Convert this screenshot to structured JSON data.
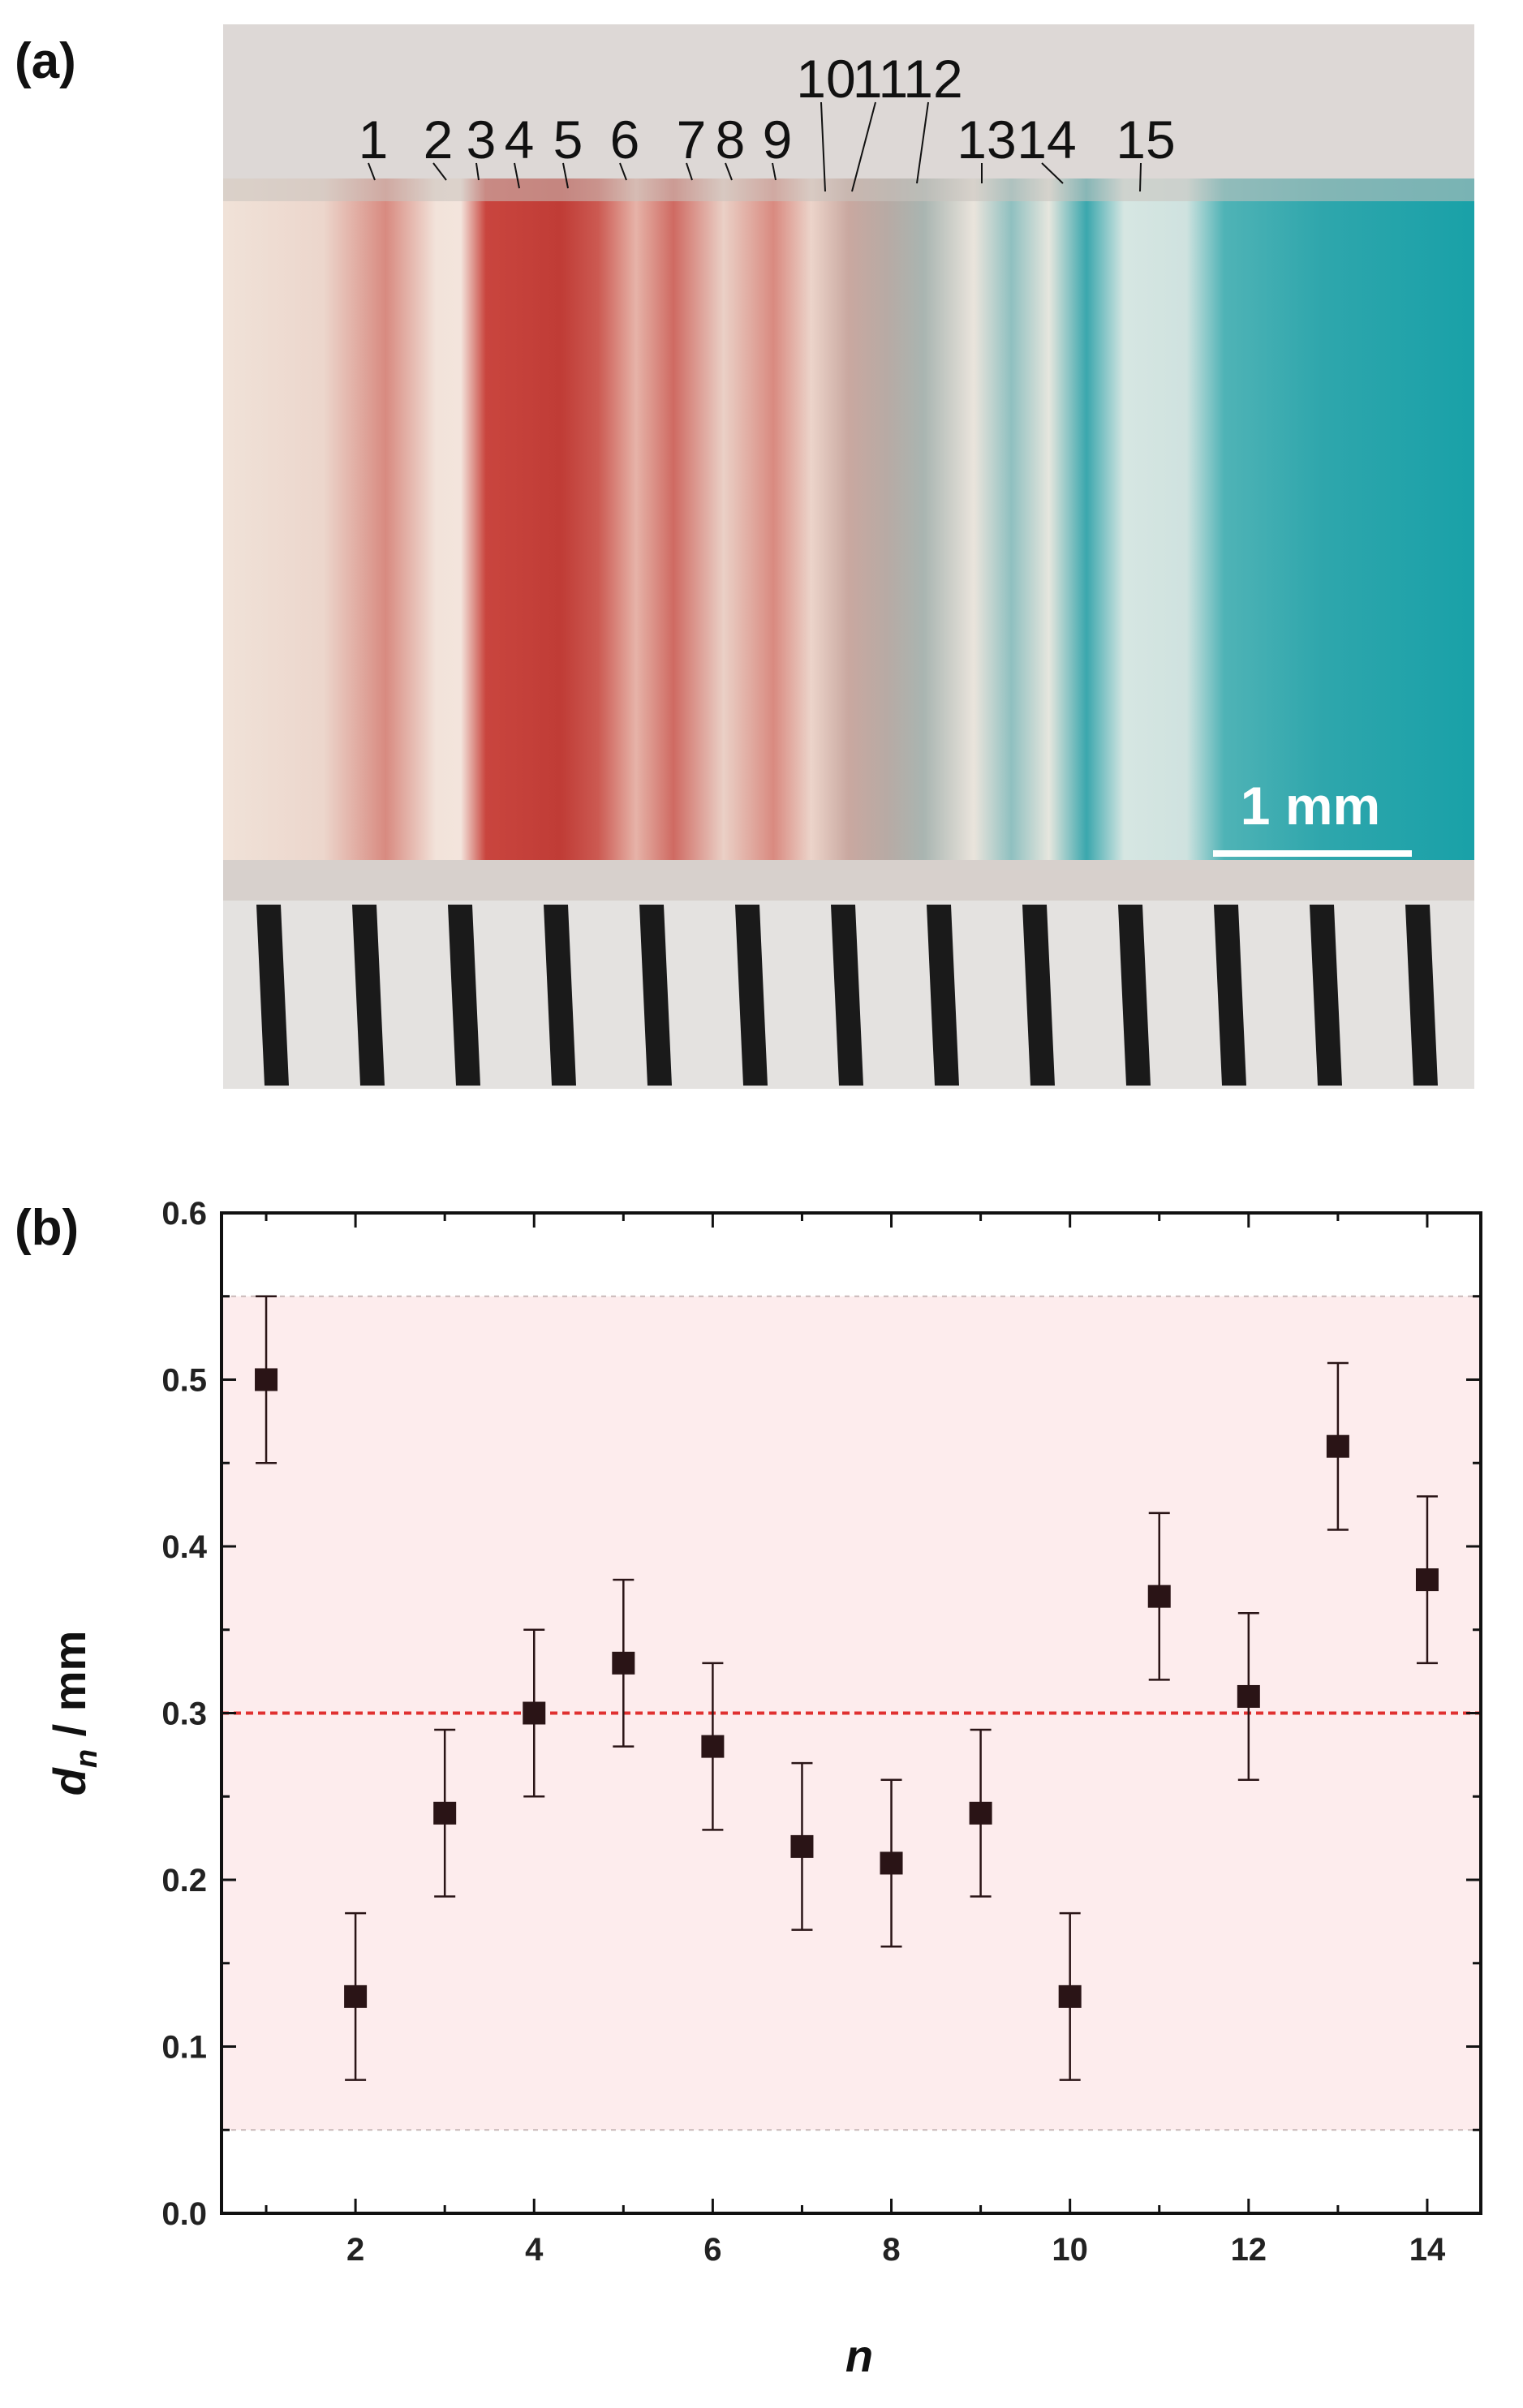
{
  "panel_a": {
    "label": "(a)",
    "band_labels": [
      "1",
      "2",
      "3",
      "4",
      "5",
      "6",
      "7",
      "8",
      "9",
      "10",
      "11",
      "12",
      "13",
      "14",
      "15"
    ],
    "scale_bar_label": "1 mm",
    "colors": {
      "red_band": "#c0504d",
      "blue_band": "#1fa3a8",
      "background": "#f1e3da"
    }
  },
  "panel_b": {
    "label": "(b)"
  },
  "chart_data": {
    "type": "scatter",
    "xlabel": "n",
    "ylabel": "d_n / mm",
    "ylabel_main": "d",
    "ylabel_sub": "n",
    "ylabel_unit": " / mm",
    "xlim": [
      0.5,
      14.6
    ],
    "ylim": [
      0.0,
      0.6
    ],
    "x_ticks": [
      2,
      4,
      6,
      8,
      10,
      12,
      14
    ],
    "x_tick_labels": [
      "2",
      "4",
      "6",
      "8",
      "10",
      "12",
      "14"
    ],
    "y_ticks": [
      0.0,
      0.1,
      0.2,
      0.3,
      0.4,
      0.5,
      0.6
    ],
    "y_tick_labels": [
      "0.0",
      "0.1",
      "0.2",
      "0.3",
      "0.4",
      "0.5",
      "0.6"
    ],
    "points": [
      {
        "x": 1,
        "y": 0.5,
        "err": 0.05
      },
      {
        "x": 2,
        "y": 0.13,
        "err": 0.05
      },
      {
        "x": 3,
        "y": 0.24,
        "err": 0.05
      },
      {
        "x": 4,
        "y": 0.3,
        "err": 0.05
      },
      {
        "x": 5,
        "y": 0.33,
        "err": 0.05
      },
      {
        "x": 6,
        "y": 0.28,
        "err": 0.05
      },
      {
        "x": 7,
        "y": 0.22,
        "err": 0.05
      },
      {
        "x": 8,
        "y": 0.21,
        "err": 0.05
      },
      {
        "x": 9,
        "y": 0.24,
        "err": 0.05
      },
      {
        "x": 10,
        "y": 0.13,
        "err": 0.05
      },
      {
        "x": 11,
        "y": 0.37,
        "err": 0.05
      },
      {
        "x": 12,
        "y": 0.31,
        "err": 0.05
      },
      {
        "x": 13,
        "y": 0.46,
        "err": 0.05
      },
      {
        "x": 14,
        "y": 0.38,
        "err": 0.05
      }
    ],
    "mean_line": 0.3,
    "shaded_band": [
      0.05,
      0.55
    ],
    "grid": false,
    "colors": {
      "marker": "#2a1416",
      "mean_line": "#e03030",
      "band_fill": "#fdeced",
      "band_edge": "#c8b8b8"
    }
  }
}
